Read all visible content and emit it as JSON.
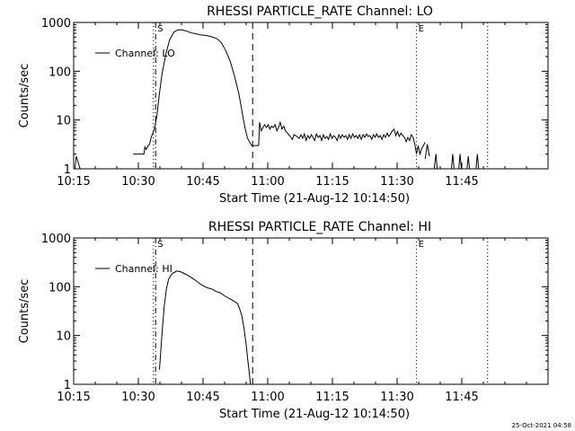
{
  "chart_data": [
    {
      "type": "line",
      "title": "RHESSI PARTICLE_RATE Channel: LO",
      "xlabel": "Start Time (21-Aug-12 10:14:50)",
      "ylabel": "Counts/sec",
      "yscale": "log",
      "ylim": [
        1,
        1000
      ],
      "xlim_minutes": [
        0,
        110
      ],
      "x_ticks": [
        {
          "m": 0,
          "label": "10:15"
        },
        {
          "m": 15,
          "label": "10:30"
        },
        {
          "m": 30,
          "label": "10:45"
        },
        {
          "m": 45,
          "label": "11:00"
        },
        {
          "m": 60,
          "label": "11:15"
        },
        {
          "m": 75,
          "label": "11:30"
        },
        {
          "m": 90,
          "label": "11:45"
        }
      ],
      "y_ticks": [
        {
          "v": 1,
          "label": "1"
        },
        {
          "v": 10,
          "label": "10"
        },
        {
          "v": 100,
          "label": "100"
        },
        {
          "v": 1000,
          "label": "1000"
        }
      ],
      "legend": "Channel: LO",
      "markers": [
        {
          "m": 18.5,
          "style": "dotted",
          "label": ""
        },
        {
          "m": 19.0,
          "style": "dashdot",
          "label": "S"
        },
        {
          "m": 41.5,
          "style": "dashed",
          "label": ""
        },
        {
          "m": 79.5,
          "style": "dotted",
          "label": "E"
        },
        {
          "m": 96.0,
          "style": "dotted",
          "label": ""
        }
      ],
      "series": [
        {
          "name": "Channel: LO",
          "x": [
            0.3,
            0.6,
            0.9,
            1.2,
            1.5
          ],
          "y": [
            1.0,
            1.8,
            1.5,
            1.2,
            1.0
          ]
        },
        {
          "name": "Channel: LO",
          "x": [
            13.8,
            16.3,
            16.5,
            16.8,
            17.3,
            17.6,
            18.0,
            18.3,
            18.8,
            19.3,
            19.8,
            20.5,
            21.5,
            22.3,
            23.3,
            24.3,
            25.3,
            26.3,
            27.3,
            28.3,
            29.3,
            30.3,
            31.3,
            32.3,
            33.3,
            34.3,
            35.3,
            36.3,
            37.3,
            38.3,
            38.8,
            39.3,
            39.8,
            40.3,
            40.8,
            41.3,
            41.6,
            42.0,
            42.5,
            42.9
          ],
          "y": [
            2.0,
            2.0,
            2.8,
            2.5,
            3.0,
            3.2,
            4.5,
            5.2,
            7.0,
            12,
            30,
            90,
            250,
            450,
            640,
            710,
            700,
            660,
            610,
            590,
            560,
            545,
            530,
            500,
            460,
            380,
            260,
            160,
            80,
            35,
            20,
            11,
            6.5,
            4.3,
            3.5,
            3.0,
            3.0,
            3.0,
            3.0,
            3.0
          ]
        },
        {
          "name": "Channel: LO",
          "x": [
            42.9,
            43.1,
            43.5,
            43.9,
            44.3,
            44.7,
            45.1,
            45.5,
            45.9,
            46.3,
            46.7,
            47.1,
            47.5,
            47.9,
            48.3,
            48.7,
            49.1,
            49.5,
            49.9,
            50.3,
            50.7,
            51.1,
            51.5,
            51.9,
            52.3,
            52.7,
            53.1,
            53.5,
            53.9,
            54.3,
            54.7,
            55.1,
            55.5,
            55.9,
            56.3,
            56.7,
            57.1,
            57.5,
            57.9,
            58.3,
            58.7,
            59.1,
            59.5,
            59.9,
            60.3,
            60.7,
            61.1,
            61.5,
            61.9,
            62.3,
            62.7,
            63.1,
            63.5,
            63.9,
            64.3,
            64.7,
            65.1,
            65.5,
            65.9,
            66.3,
            66.7,
            67.1,
            67.5,
            67.9,
            68.3,
            68.7,
            69.1,
            69.5,
            69.9,
            70.3,
            70.7,
            71.1,
            71.5,
            71.9,
            72.3,
            72.7,
            73.1,
            73.5,
            73.9,
            74.3,
            74.7,
            75.1,
            75.5,
            75.9,
            76.3,
            76.7,
            77.1,
            77.5,
            77.9,
            78.3,
            78.7,
            79.1,
            79.5,
            79.9,
            80.3,
            80.7,
            81.1,
            81.5
          ],
          "y": [
            3.0,
            9,
            6,
            7,
            8,
            7,
            8,
            6.5,
            7.5,
            7,
            8,
            6,
            7,
            9,
            6.5,
            7.5,
            6,
            5.5,
            5,
            4.5,
            4,
            5,
            4.8,
            4.5,
            4.2,
            5,
            4.2,
            5.2,
            3.8,
            4.8,
            4.2,
            5,
            4.4,
            3.8,
            5.2,
            4.4,
            4.8,
            3.8,
            5,
            4.2,
            4.6,
            4,
            5.2,
            4.2,
            4.8,
            4.4,
            3.8,
            5,
            4.2,
            5,
            4.4,
            4.8,
            4,
            5,
            4.2,
            5.2,
            4.4,
            4.8,
            4.2,
            5,
            4,
            5,
            4.4,
            5.2,
            4.6,
            4.8,
            4,
            5,
            4.4,
            5.2,
            4.4,
            4.8,
            4,
            5,
            4.4,
            5.4,
            4.6,
            5.2,
            6,
            6.5,
            4.8,
            5.8,
            4.6,
            5.4,
            4.8,
            4.4,
            3.6,
            4.4,
            3.8,
            5,
            4.4,
            3.2,
            2.0,
            3.0,
            2.0,
            2.6,
            3.0,
            3.5
          ]
        },
        {
          "name": "Channel: LO",
          "x": [
            81.5,
            82.0,
            82.5
          ],
          "y": [
            1.6,
            3.2,
            1.8
          ]
        },
        {
          "name": "Channel: LO",
          "x": [
            83.6,
            84.0,
            84.3
          ],
          "y": [
            1.0,
            2.0,
            1.0
          ]
        },
        {
          "name": "Channel: LO",
          "x": [
            87.6,
            87.9,
            88.2
          ],
          "y": [
            1.0,
            2.0,
            1.0
          ]
        },
        {
          "name": "Channel: LO",
          "x": [
            89.3,
            89.6,
            89.9
          ],
          "y": [
            1.0,
            2.0,
            1.0
          ]
        },
        {
          "name": "Channel: LO",
          "x": [
            91.2,
            91.5,
            91.8
          ],
          "y": [
            1.0,
            1.8,
            1.0
          ]
        },
        {
          "name": "Channel: LO",
          "x": [
            93.3,
            93.6,
            93.9
          ],
          "y": [
            1.0,
            2.0,
            1.0
          ]
        }
      ]
    },
    {
      "type": "line",
      "title": "RHESSI PARTICLE_RATE Channel: HI",
      "xlabel": "Start Time (21-Aug-12 10:14:50)",
      "ylabel": "Counts/sec",
      "yscale": "log",
      "ylim": [
        1,
        1000
      ],
      "xlim_minutes": [
        0,
        110
      ],
      "x_ticks": [
        {
          "m": 0,
          "label": "10:15"
        },
        {
          "m": 15,
          "label": "10:30"
        },
        {
          "m": 30,
          "label": "10:45"
        },
        {
          "m": 45,
          "label": "11:00"
        },
        {
          "m": 60,
          "label": "11:15"
        },
        {
          "m": 75,
          "label": "11:30"
        },
        {
          "m": 90,
          "label": "11:45"
        }
      ],
      "y_ticks": [
        {
          "v": 1,
          "label": "1"
        },
        {
          "v": 10,
          "label": "10"
        },
        {
          "v": 100,
          "label": "100"
        },
        {
          "v": 1000,
          "label": "1000"
        }
      ],
      "legend": "Channel: HI",
      "markers": [
        {
          "m": 18.5,
          "style": "dotted",
          "label": ""
        },
        {
          "m": 19.0,
          "style": "dashdot",
          "label": "S"
        },
        {
          "m": 41.5,
          "style": "dashed",
          "label": ""
        },
        {
          "m": 79.5,
          "style": "dotted",
          "label": "E"
        },
        {
          "m": 96.0,
          "style": "dotted",
          "label": ""
        }
      ],
      "series": [
        {
          "name": "Channel: HI",
          "x": [
            19.9,
            20.2,
            20.6,
            21.0,
            21.5,
            22.0,
            22.5,
            23.0,
            23.5,
            24.0,
            25.0,
            26.0,
            27.0,
            28.0,
            29.0,
            30.0,
            31.0,
            32.0,
            33.0,
            34.0,
            35.0,
            36.0,
            37.0,
            38.0,
            38.5,
            39.0,
            39.5,
            40.0,
            40.4,
            40.8,
            41.0
          ],
          "y": [
            2.0,
            5.0,
            15,
            40,
            90,
            140,
            170,
            190,
            200,
            210,
            200,
            180,
            160,
            140,
            120,
            105,
            95,
            90,
            80,
            75,
            65,
            58,
            52,
            45,
            35,
            25,
            14,
            6.5,
            3.0,
            1.5,
            1.0
          ]
        }
      ]
    }
  ],
  "footer": {
    "timestamp": "25-Oct-2021 04:58"
  }
}
